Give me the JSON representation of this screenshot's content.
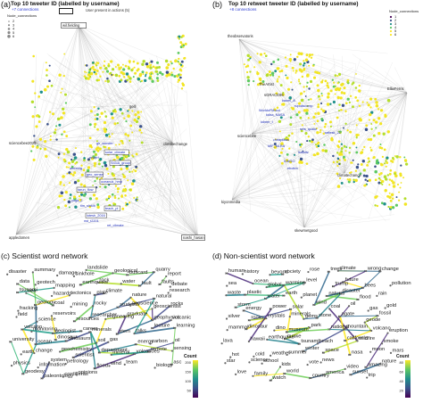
{
  "panel_a": {
    "tag": "(a)",
    "title": "Top 10 tweeter ID (labelled by username)",
    "subtitle": "+7 connections",
    "legend_box_label": "User present in actions (5)",
    "legend_title": "Node_connections",
    "legend_values": [
      "2",
      "3",
      "4",
      "5",
      "6"
    ],
    "hubs": [
      "wil.fielding",
      "climatechange",
      "sciencebee2025",
      "appledomen",
      "nashi_hasan",
      "geo"
    ],
    "boxed": [
      "solar_climate",
      "SIGIA_group",
      "geo_sense",
      "oceanuk_hmp",
      "tarun_flow",
      "teach_pl",
      "lotesh_2016"
    ],
    "small": [
      "nrsqtrl",
      "amreetg",
      "yoga_2",
      "tim_sinklit",
      "nst_t2201",
      "ret_climate",
      "gh_wonder"
    ]
  },
  "panel_b": {
    "tag": "(b)",
    "title": "Top 10 retweet tweeter ID (labelled by username)",
    "subtitle": "+8 connections",
    "legend_title": "Node_connections",
    "legend_values": [
      "1",
      "2",
      "3",
      "4",
      "5",
      "6"
    ],
    "hubs": [
      "theobservatoris",
      "EllieFerris",
      "climatechange",
      "kiyonmedia",
      "skewmetgood",
      "sciencebee"
    ],
    "labels": [
      "TheArtist",
      "sGRACE96",
      "kaomi_A",
      "rupoliscomp",
      "WorldoFMood",
      "kdisx_NASA",
      "kdmer_t",
      "seis_quake",
      "raftesk_22",
      "cheaplikas",
      "MIF_MLRA",
      "lsatoltz",
      "lGNGO",
      "ebottm"
    ]
  },
  "panel_c": {
    "tag": "(c)",
    "title": "Scientist word network",
    "legend_title": "Count",
    "legend_ticks": [
      "200",
      "150",
      "100",
      "50"
    ],
    "words": [
      "disaster",
      "summary",
      "damage",
      "sinkhole",
      "landslide",
      "geological",
      "buscard",
      "quarry",
      "report",
      "data",
      "geotech",
      "mapping",
      "earthquake",
      "rock",
      "water",
      "fault",
      "faults",
      "debate",
      "tsunami",
      "sea",
      "hazards",
      "tectonics",
      "plate",
      "climate",
      "nature",
      "natural",
      "research",
      "fracking",
      "geology",
      "coal",
      "mining",
      "rocky",
      "students",
      "geoscience",
      "geoscientist",
      "rocks",
      "field",
      "science",
      "reservoirs",
      "resources",
      "researcher",
      "engineering",
      "graduate",
      "geophysics",
      "volcanic",
      "volcano",
      "monitoring",
      "geologist",
      "career",
      "minerals",
      "stem",
      "talks",
      "lecture",
      "learning",
      "university",
      "ocean",
      "dinosaur",
      "dinosaurs",
      "soil",
      "gas",
      "energy",
      "carbon",
      "oil",
      "earth",
      "change",
      "geochemistry",
      "scientist",
      "department",
      "mineral",
      "volcanoes",
      "remote",
      "sensing",
      "physics",
      "information",
      "system",
      "petrology",
      "flood",
      "wind",
      "team",
      "biology",
      "asc",
      "geodesy",
      "paleontology",
      "cordilleras",
      "opinions"
    ]
  },
  "panel_d": {
    "tag": "(d)",
    "title": "Non-scientist word network",
    "legend_title": "Count",
    "legend_ticks": [
      "80",
      "60",
      "40",
      "20"
    ],
    "words": [
      "human",
      "history",
      "beyond",
      "society",
      "rose",
      "trees",
      "climate",
      "wrong",
      "change",
      "sea",
      "ocean",
      "global",
      "warming",
      "level",
      "trump",
      "future",
      "bees",
      "pollution",
      "waste",
      "plastic",
      "water",
      "earth",
      "planet",
      "natural",
      "disaster",
      "flood",
      "rain",
      "storm",
      "energy",
      "power",
      "solar",
      "wind",
      "coal",
      "oil",
      "gas",
      "gold",
      "silver",
      "rocks",
      "crystals",
      "minerals",
      "gems",
      "stone",
      "agate",
      "geode",
      "fossil",
      "mammal",
      "dinosaur",
      "dino",
      "museum",
      "park",
      "national",
      "mountain",
      "volcano",
      "eruption",
      "lava",
      "hawaii",
      "earthquake",
      "quake",
      "tsunami",
      "beach",
      "california",
      "wildfire",
      "smoke",
      "hot",
      "cold",
      "weather",
      "summer",
      "winter",
      "space",
      "nasa",
      "moon",
      "mars",
      "star",
      "science",
      "school",
      "kids",
      "vote",
      "news",
      "video",
      "amazing",
      "nature",
      "love",
      "family",
      "watch",
      "world",
      "country",
      "america",
      "sunset",
      "trip"
    ]
  },
  "colors": {
    "viridis": [
      "#440154",
      "#3b528b",
      "#21908c",
      "#5dc863",
      "#fde725"
    ],
    "edge": "#9a9a9a",
    "label_blue": "#2a3bd0"
  }
}
